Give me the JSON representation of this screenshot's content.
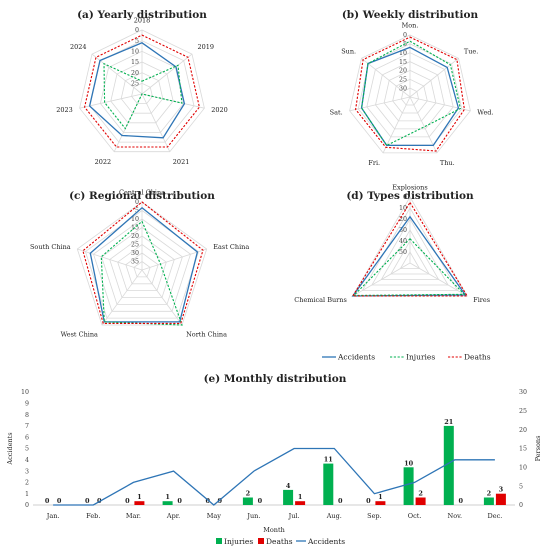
{
  "colors": {
    "accidents": "#2e75b6",
    "injuries": "#00b050",
    "deaths": "#e00000",
    "grid": "#d9d9d9"
  },
  "radar_legend": [
    "Accidents",
    "Injuries",
    "Deaths"
  ],
  "bar_legend": [
    "Injuries",
    "Deaths",
    "Accidents"
  ],
  "chart_data": [
    {
      "id": "yearly",
      "type": "radar",
      "title": "(a) Yearly distribution",
      "categories": [
        "2018",
        "2019",
        "2020",
        "2021",
        "2022",
        "2023",
        "2024"
      ],
      "ticks": [
        "0",
        "5",
        "10",
        "15",
        "20",
        "25"
      ],
      "rmax": 25,
      "series": [
        {
          "name": "Accidents",
          "values": [
            5,
            8,
            8,
            6,
            7,
            4,
            4
          ]
        },
        {
          "name": "Injuries",
          "values": [
            20,
            7,
            9,
            25,
            10,
            10,
            6
          ]
        },
        {
          "name": "Deaths",
          "values": [
            2,
            2,
            2,
            2,
            2,
            2,
            2
          ]
        }
      ]
    },
    {
      "id": "weekly",
      "type": "radar",
      "title": "(b) Weekly distribution",
      "categories": [
        "Mon.",
        "Tue.",
        "Wed.",
        "Thu.",
        "Fri.",
        "Sat.",
        "Sun."
      ],
      "ticks": [
        "0",
        "5",
        "10",
        "15",
        "20",
        "25",
        "30"
      ],
      "rmax": 30,
      "series": [
        {
          "name": "Accidents",
          "values": [
            6,
            7,
            6,
            4,
            4,
            6,
            4
          ]
        },
        {
          "name": "Injuries",
          "values": [
            3,
            5,
            5,
            14,
            4,
            6,
            4
          ]
        },
        {
          "name": "Deaths",
          "values": [
            1,
            1,
            3,
            1,
            3,
            3,
            1
          ]
        }
      ]
    },
    {
      "id": "regional",
      "type": "radar",
      "title": "(c) Regional distribution",
      "categories": [
        "Central China",
        "East China",
        "North China",
        "West China",
        "South China"
      ],
      "ticks": [
        "0",
        "5",
        "10",
        "15",
        "20",
        "25",
        "30",
        "35"
      ],
      "rmax": 35,
      "series": [
        {
          "name": "Accidents",
          "values": [
            3,
            5,
            2,
            2,
            7
          ]
        },
        {
          "name": "Injuries",
          "values": [
            10,
            25,
            0,
            2,
            13
          ]
        },
        {
          "name": "Deaths",
          "values": [
            0,
            2,
            1,
            1,
            3
          ]
        }
      ]
    },
    {
      "id": "types",
      "type": "radar",
      "title": "(d) Types distribution",
      "categories": [
        "Explosions",
        "Fires",
        "Chemical Burns"
      ],
      "ticks": [
        "0",
        "10",
        "20",
        "30",
        "40",
        "50"
      ],
      "rmax": 60,
      "series": [
        {
          "name": "Accidents",
          "values": [
            18,
            2,
            0
          ]
        },
        {
          "name": "Injuries",
          "values": [
            38,
            3,
            1
          ]
        },
        {
          "name": "Deaths",
          "values": [
            5,
            0,
            0
          ]
        }
      ]
    },
    {
      "id": "monthly",
      "type": "bar",
      "title": "(e) Monthly distribution",
      "xlabel": "Month",
      "ylabel": "Accidents",
      "y2label": "Persons",
      "categories": [
        "Jan.",
        "Feb.",
        "Mar.",
        "Apr.",
        "May",
        "Jun.",
        "Jul.",
        "Aug.",
        "Sep.",
        "Oct.",
        "Nov.",
        "Dec."
      ],
      "ylim": [
        0,
        10
      ],
      "y2lim": [
        0,
        30
      ],
      "yticks": [
        "0",
        "1",
        "2",
        "3",
        "4",
        "5",
        "6",
        "7",
        "8",
        "9",
        "10"
      ],
      "y2ticks": [
        "0",
        "5",
        "10",
        "15",
        "20",
        "25",
        "30"
      ],
      "series": [
        {
          "name": "Injuries",
          "values": [
            0,
            0,
            0,
            1,
            0,
            2,
            4,
            11,
            0,
            10,
            21,
            2
          ],
          "labels": [
            "0",
            "0",
            "0",
            "1",
            "0",
            "2",
            "4",
            "11",
            "0",
            "10",
            "21",
            "2"
          ]
        },
        {
          "name": "Deaths",
          "values": [
            0,
            0,
            1,
            0,
            0,
            0,
            1,
            0,
            1,
            2,
            0,
            3
          ],
          "labels": [
            "0",
            "0",
            "1",
            "0",
            "0",
            "0",
            "1",
            "0",
            "1",
            "2",
            "0",
            "3"
          ]
        },
        {
          "name": "Accidents",
          "values": [
            0,
            0,
            2,
            3,
            0,
            3,
            5,
            5,
            1,
            2,
            4,
            4
          ]
        }
      ]
    }
  ]
}
